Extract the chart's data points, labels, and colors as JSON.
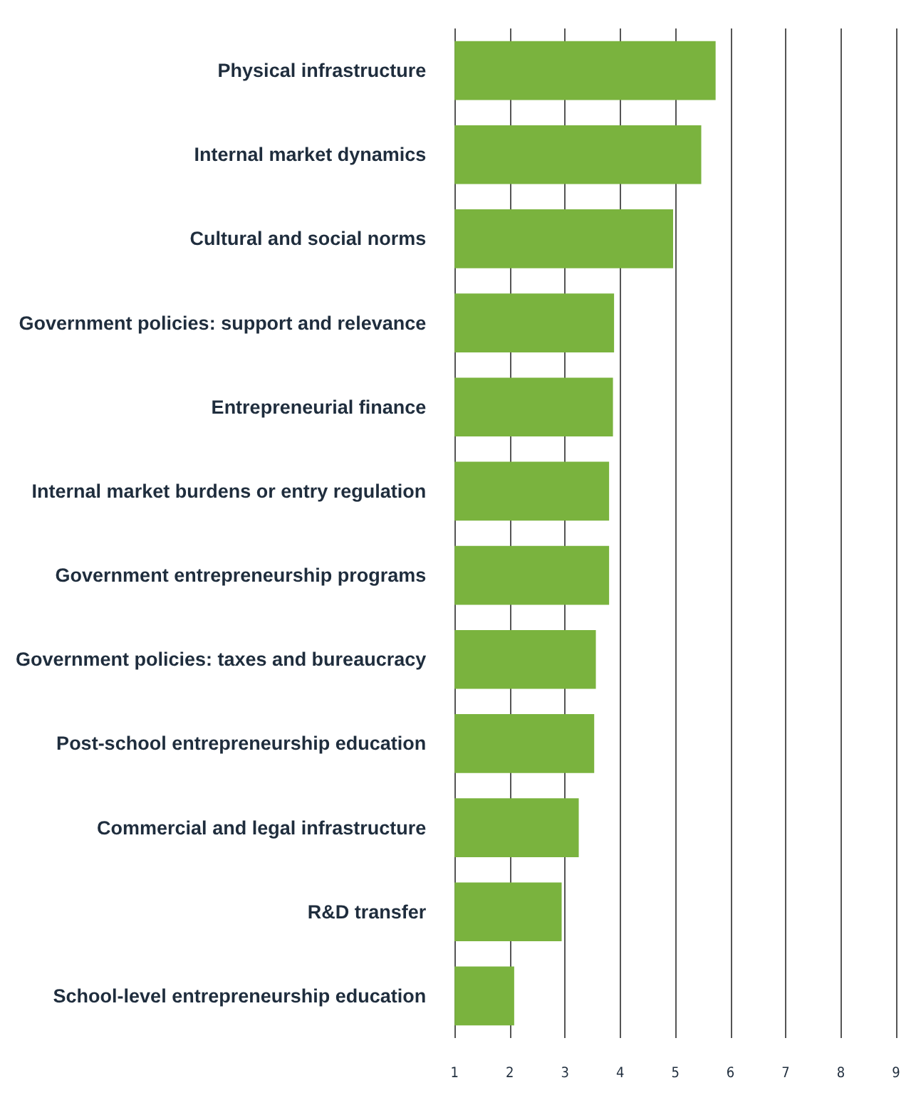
{
  "chart_data": {
    "type": "bar",
    "orientation": "horizontal",
    "categories": [
      "Physical infrastructure",
      "Internal market dynamics",
      "Cultural and social norms",
      "Government policies: support and relevance",
      "Entrepreneurial finance",
      "Internal market burdens or entry regulation",
      "Government entrepreneurship programs",
      "Government policies: taxes and bureaucracy",
      "Post-school entrepreneurship education",
      "Commercial and legal infrastructure",
      "R&D transfer",
      "School-level entrepreneurship education"
    ],
    "values": [
      5.73,
      5.47,
      4.96,
      3.89,
      3.87,
      3.8,
      3.8,
      3.56,
      3.53,
      3.25,
      2.94,
      2.08
    ],
    "color": "#7ab33e",
    "xlim": [
      1,
      9
    ],
    "xticks": [
      1,
      2,
      3,
      4,
      5,
      6,
      7,
      8,
      9
    ],
    "grid": "x"
  }
}
